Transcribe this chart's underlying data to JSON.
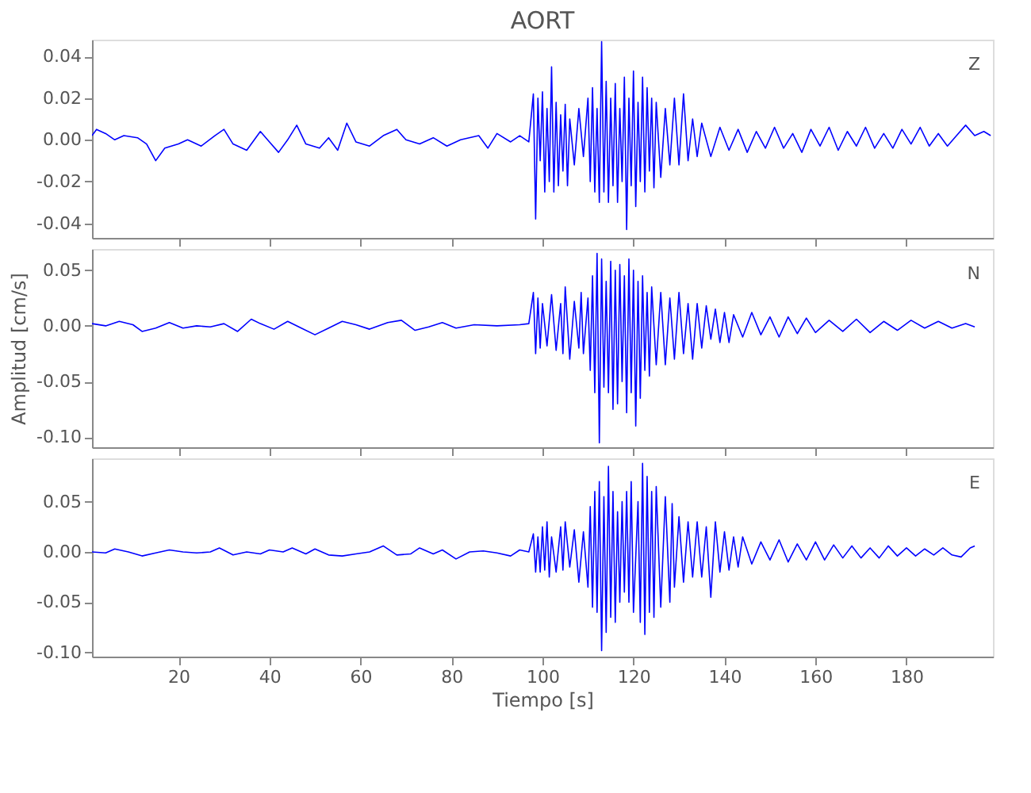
{
  "chart_data": [
    {
      "type": "line",
      "title": "AORT",
      "annotations": [
        "Z"
      ],
      "tick_labels": "y",
      "grid": false,
      "xlim": [
        1,
        199
      ],
      "xticks": [
        20,
        40,
        60,
        80,
        100,
        120,
        140,
        160,
        180
      ],
      "ylim": [
        -0.047,
        0.048
      ],
      "yticks": [
        {
          "value": -0.04,
          "label": "-0.04"
        },
        {
          "value": -0.02,
          "label": "-0.02"
        },
        {
          "value": 0,
          "label": "0.00"
        },
        0.02,
        0.04
      ],
      "series": [
        {
          "color": "#0000ff",
          "x": [
            1,
            2,
            4,
            6,
            8,
            11,
            13,
            15,
            17,
            20,
            22,
            25,
            28,
            30,
            32,
            35,
            38,
            40,
            42,
            44,
            46,
            48,
            51,
            53,
            55,
            57,
            59,
            62,
            65,
            68,
            70,
            73,
            76,
            79,
            82,
            86,
            88,
            90,
            93,
            95,
            97,
            98,
            98.5,
            99,
            99.5,
            100,
            100.5,
            101,
            101.5,
            102,
            102.5,
            103,
            103.5,
            104,
            104.5,
            105,
            105.5,
            106,
            107,
            108,
            109,
            110,
            110.5,
            111,
            111.5,
            112,
            112.5,
            113,
            113.5,
            114,
            114.5,
            115,
            115.5,
            116,
            116.5,
            117,
            117.5,
            118,
            118.5,
            119,
            119.5,
            120,
            120.5,
            121,
            121.5,
            122,
            122.5,
            123,
            123.5,
            124,
            124.5,
            125,
            126,
            127,
            128,
            129,
            130,
            131,
            132,
            133,
            134,
            135,
            137,
            139,
            141,
            143,
            145,
            147,
            149,
            151,
            153,
            155,
            157,
            159,
            161,
            163,
            165,
            167,
            169,
            171,
            173,
            175,
            177,
            179,
            181,
            183,
            185,
            187,
            189,
            191,
            193,
            195,
            197,
            198.5
          ],
          "values": [
            0.002,
            0.005,
            0.003,
            0.0,
            0.002,
            0.001,
            -0.002,
            -0.01,
            -0.004,
            -0.002,
            0.0,
            -0.003,
            0.002,
            0.005,
            -0.002,
            -0.005,
            0.004,
            -0.001,
            -0.006,
            0.0,
            0.007,
            -0.002,
            -0.004,
            0.001,
            -0.005,
            0.008,
            -0.001,
            -0.003,
            0.002,
            0.005,
            0.0,
            -0.002,
            0.001,
            -0.003,
            0.0,
            0.002,
            -0.004,
            0.003,
            -0.001,
            0.002,
            -0.001,
            0.022,
            -0.038,
            0.02,
            -0.01,
            0.023,
            -0.025,
            0.015,
            -0.02,
            0.035,
            -0.025,
            0.018,
            -0.022,
            0.012,
            -0.015,
            0.017,
            -0.022,
            0.01,
            -0.012,
            0.015,
            -0.008,
            0.02,
            -0.02,
            0.025,
            -0.025,
            0.015,
            -0.03,
            0.047,
            -0.025,
            0.028,
            -0.03,
            0.02,
            -0.022,
            0.027,
            -0.03,
            0.015,
            -0.02,
            0.03,
            -0.043,
            0.02,
            -0.022,
            0.033,
            -0.032,
            0.018,
            -0.02,
            0.03,
            -0.025,
            0.025,
            -0.015,
            0.02,
            -0.023,
            0.018,
            -0.018,
            0.015,
            -0.012,
            0.02,
            -0.012,
            0.022,
            -0.01,
            0.01,
            -0.008,
            0.008,
            -0.008,
            0.006,
            -0.005,
            0.005,
            -0.006,
            0.004,
            -0.004,
            0.006,
            -0.004,
            0.003,
            -0.006,
            0.005,
            -0.003,
            0.006,
            -0.005,
            0.004,
            -0.003,
            0.006,
            -0.004,
            0.003,
            -0.004,
            0.005,
            -0.002,
            0.006,
            -0.003,
            0.003,
            -0.003,
            0.002,
            0.007,
            0.002,
            0.004,
            0.002
          ]
        }
      ]
    },
    {
      "type": "line",
      "ylabel": "Amplitud [cm/s]",
      "annotations": [
        "N"
      ],
      "tick_labels": "y",
      "grid": false,
      "xlim": [
        1,
        199
      ],
      "xticks": [
        20,
        40,
        60,
        80,
        100,
        120,
        140,
        160,
        180
      ],
      "ylim": [
        -0.109,
        0.069
      ],
      "yticks": [
        {
          "value": -0.1,
          "label": "-0.10"
        },
        {
          "value": -0.05,
          "label": "-0.05"
        },
        {
          "value": 0,
          "label": "0.00"
        },
        0.05
      ],
      "series": [
        {
          "color": "#0000ff",
          "x": [
            1,
            4,
            7,
            10,
            12,
            15,
            18,
            21,
            24,
            27,
            30,
            33,
            36,
            38,
            41,
            44,
            47,
            50,
            53,
            56,
            59,
            62,
            66,
            69,
            72,
            75,
            78,
            81,
            85,
            90,
            95,
            97,
            98,
            98.5,
            99,
            99.5,
            100,
            101,
            102,
            103,
            104,
            104.5,
            105,
            106,
            107,
            108,
            108.5,
            109,
            110,
            110.5,
            111,
            111.5,
            112,
            112.5,
            113,
            113.5,
            114,
            114.5,
            115,
            115.5,
            116,
            116.5,
            117,
            117.5,
            118,
            118.5,
            119,
            119.5,
            120,
            120.5,
            121,
            121.5,
            122,
            122.5,
            123,
            123.5,
            124,
            125,
            126,
            127,
            128,
            129,
            130,
            131,
            132,
            133,
            134,
            135,
            136,
            137,
            138,
            139,
            140,
            141,
            142,
            144,
            146,
            148,
            150,
            152,
            154,
            156,
            158,
            160,
            163,
            166,
            169,
            172,
            175,
            178,
            181,
            184,
            187,
            190,
            193,
            195
          ],
          "values": [
            0.002,
            0.0,
            0.004,
            0.001,
            -0.005,
            -0.002,
            0.003,
            -0.002,
            0.0,
            -0.001,
            0.002,
            -0.005,
            0.006,
            0.002,
            -0.003,
            0.004,
            -0.002,
            -0.008,
            -0.002,
            0.004,
            0.001,
            -0.003,
            0.003,
            0.005,
            -0.004,
            -0.001,
            0.003,
            -0.002,
            0.001,
            0.0,
            0.001,
            0.002,
            0.03,
            -0.025,
            0.025,
            -0.02,
            0.02,
            -0.018,
            0.028,
            -0.022,
            0.02,
            -0.025,
            0.035,
            -0.03,
            0.022,
            -0.02,
            0.03,
            -0.025,
            0.025,
            -0.04,
            0.045,
            -0.06,
            0.065,
            -0.105,
            0.06,
            -0.055,
            0.04,
            -0.06,
            0.058,
            -0.075,
            0.05,
            -0.07,
            0.055,
            -0.05,
            0.045,
            -0.078,
            0.06,
            -0.06,
            0.05,
            -0.09,
            0.04,
            -0.065,
            0.045,
            -0.04,
            0.03,
            -0.045,
            0.035,
            -0.035,
            0.03,
            -0.035,
            0.025,
            -0.03,
            0.03,
            -0.025,
            0.02,
            -0.03,
            0.02,
            -0.02,
            0.018,
            -0.012,
            0.015,
            -0.015,
            0.012,
            -0.015,
            0.01,
            -0.01,
            0.012,
            -0.008,
            0.008,
            -0.01,
            0.008,
            -0.007,
            0.007,
            -0.006,
            0.005,
            -0.005,
            0.006,
            -0.006,
            0.004,
            -0.004,
            0.005,
            -0.002,
            0.004,
            -0.002,
            0.002,
            -0.001
          ]
        }
      ]
    },
    {
      "type": "line",
      "xlabel": "Tiempo [s]",
      "annotations": [
        "E"
      ],
      "grid": false,
      "xlim": [
        1,
        199
      ],
      "xticks": [
        20,
        40,
        60,
        80,
        100,
        120,
        140,
        160,
        180
      ],
      "ylim": [
        -0.104,
        0.093
      ],
      "yticks": [
        {
          "value": -0.1,
          "label": "-0.10"
        },
        {
          "value": -0.05,
          "label": "-0.05"
        },
        {
          "value": 0,
          "label": "0.00"
        },
        0.05
      ],
      "series": [
        {
          "color": "#0000ff",
          "x": [
            1,
            4,
            6,
            9,
            12,
            15,
            18,
            21,
            24,
            27,
            29,
            32,
            35,
            38,
            40,
            43,
            45,
            48,
            50,
            53,
            56,
            59,
            62,
            65,
            68,
            71,
            73,
            76,
            78,
            81,
            84,
            87,
            90,
            93,
            95,
            97,
            98,
            98.5,
            99,
            99.5,
            100,
            100.5,
            101,
            101.5,
            102,
            103,
            104,
            104.5,
            105,
            106,
            107,
            108,
            109,
            110,
            110.5,
            111,
            111.5,
            112,
            112.5,
            113,
            113.5,
            114,
            114.5,
            115,
            115.5,
            116,
            116.5,
            117,
            117.5,
            118,
            118.5,
            119,
            119.5,
            120,
            121,
            121.5,
            122,
            122.5,
            123,
            123.5,
            124,
            124.5,
            125,
            126,
            127,
            128,
            128.5,
            129,
            130,
            131,
            132,
            133,
            134,
            135,
            136,
            137,
            138,
            139,
            140,
            141,
            142,
            143,
            144,
            146,
            148,
            150,
            152,
            154,
            156,
            158,
            160,
            162,
            164,
            166,
            168,
            170,
            172,
            174,
            176,
            178,
            180,
            182,
            184,
            186,
            188,
            190,
            192,
            194,
            195
          ],
          "values": [
            0.0,
            -0.001,
            0.003,
            0.0,
            -0.004,
            -0.001,
            0.002,
            0.0,
            -0.001,
            0.0,
            0.004,
            -0.003,
            0.0,
            -0.002,
            0.002,
            0.0,
            0.004,
            -0.002,
            0.003,
            -0.003,
            -0.004,
            -0.002,
            0.0,
            0.006,
            -0.003,
            -0.002,
            0.004,
            -0.002,
            0.002,
            -0.007,
            0.0,
            0.001,
            -0.001,
            -0.004,
            0.002,
            0.0,
            0.018,
            -0.02,
            0.015,
            -0.02,
            0.025,
            -0.018,
            0.03,
            -0.025,
            0.015,
            -0.02,
            0.025,
            -0.018,
            0.03,
            -0.015,
            0.022,
            -0.03,
            0.02,
            -0.035,
            0.045,
            -0.055,
            0.06,
            -0.06,
            0.07,
            -0.098,
            0.055,
            -0.08,
            0.085,
            -0.065,
            0.06,
            -0.07,
            0.04,
            -0.05,
            0.05,
            -0.04,
            0.06,
            -0.05,
            0.07,
            -0.06,
            0.05,
            -0.07,
            0.088,
            -0.082,
            0.075,
            -0.06,
            0.06,
            -0.065,
            0.065,
            -0.055,
            0.055,
            -0.05,
            0.048,
            -0.035,
            0.035,
            -0.03,
            0.03,
            -0.025,
            0.03,
            -0.025,
            0.025,
            -0.045,
            0.03,
            -0.02,
            0.02,
            -0.018,
            0.015,
            -0.015,
            0.015,
            -0.012,
            0.01,
            -0.008,
            0.012,
            -0.01,
            0.008,
            -0.008,
            0.01,
            -0.008,
            0.007,
            -0.006,
            0.006,
            -0.006,
            0.004,
            -0.006,
            0.006,
            -0.004,
            0.004,
            -0.004,
            0.003,
            -0.003,
            0.004,
            -0.003,
            -0.005,
            0.004,
            0.006
          ]
        }
      ]
    }
  ]
}
